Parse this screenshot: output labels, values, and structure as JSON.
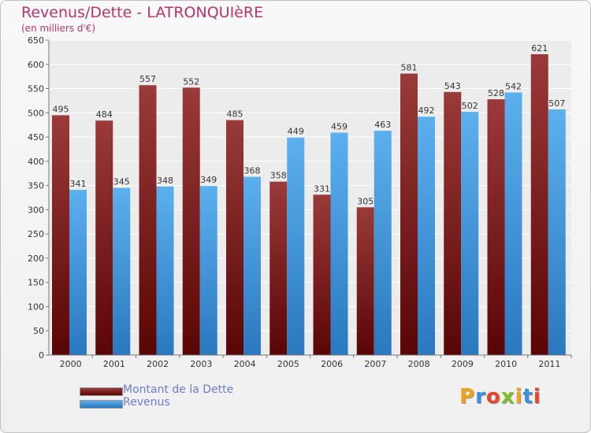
{
  "chart_data": {
    "type": "bar",
    "title": "Revenus/Dette - LATRONQUIèRE",
    "subtitle": "(en milliers d'€)",
    "categories": [
      "2000",
      "2001",
      "2002",
      "2003",
      "2004",
      "2005",
      "2006",
      "2007",
      "2008",
      "2009",
      "2010",
      "2011"
    ],
    "series": [
      {
        "name": "Montant de la Dette",
        "color": "#7a1616",
        "values": [
          495,
          484,
          557,
          552,
          485,
          358,
          331,
          305,
          581,
          543,
          528,
          621
        ]
      },
      {
        "name": "Revenus",
        "color": "#4ca0e2",
        "values": [
          341,
          345,
          348,
          349,
          368,
          449,
          459,
          463,
          492,
          502,
          542,
          507
        ]
      }
    ],
    "ylim": [
      0,
      650
    ],
    "yticks": [
      0,
      50,
      100,
      150,
      200,
      250,
      300,
      350,
      400,
      450,
      500,
      550,
      600,
      650
    ],
    "grid": true,
    "legend": "bottom-left"
  },
  "logo": {
    "text": "Proxiti"
  }
}
